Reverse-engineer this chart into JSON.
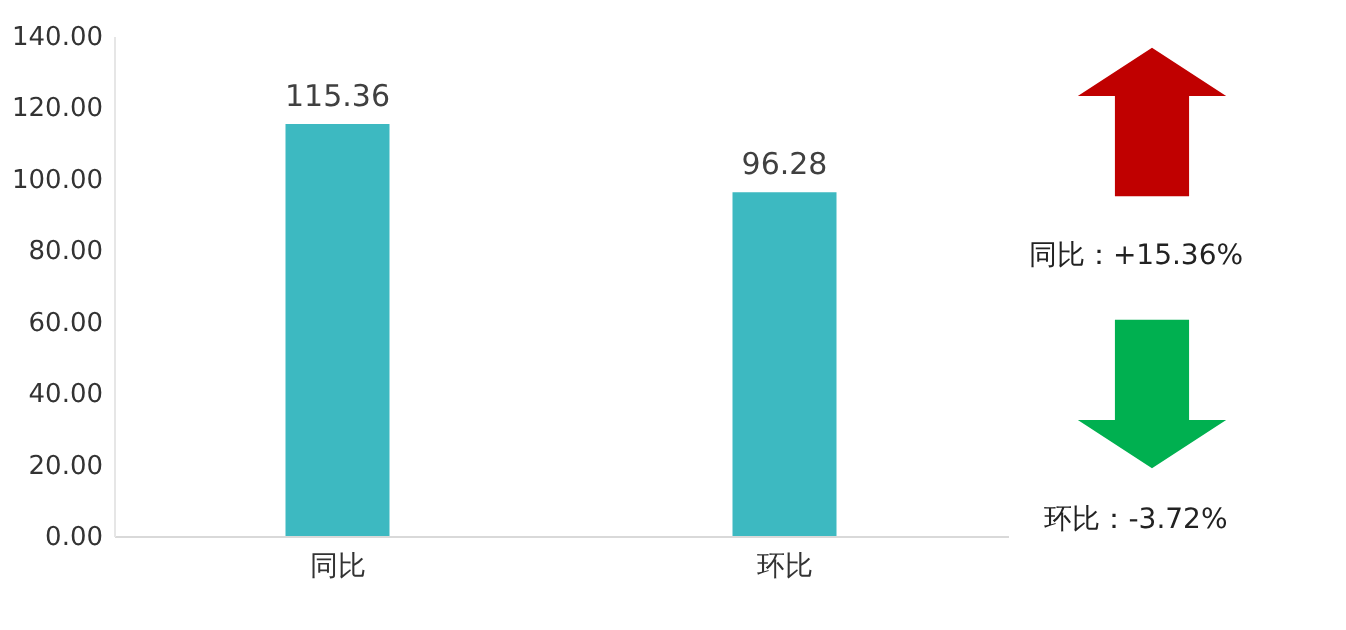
{
  "chart_data": {
    "type": "bar",
    "categories": [
      "同比",
      "环比"
    ],
    "values": [
      115.36,
      96.28
    ],
    "color": "#3db9c1",
    "ylim": [
      0,
      140
    ],
    "yticks": [
      {
        "value": 0,
        "label": "0.00"
      },
      {
        "value": 20,
        "label": "20.00"
      },
      {
        "value": 40,
        "label": "40.00"
      },
      {
        "value": 60,
        "label": "60.00"
      },
      {
        "value": 80,
        "label": "80.00"
      },
      {
        "value": 100,
        "label": "100.00"
      },
      {
        "value": 120,
        "label": "120.00"
      },
      {
        "value": 140,
        "label": "140.00"
      }
    ],
    "data_labels": true,
    "grid": false,
    "annotations": [
      "同比：+15.36%",
      "环比：-3.72%"
    ]
  }
}
